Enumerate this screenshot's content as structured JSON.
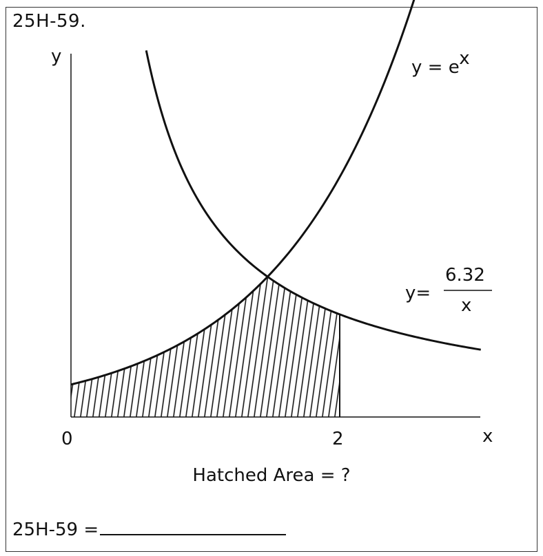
{
  "problem": {
    "id": "25H-59.",
    "question": "Hatched Area = ?",
    "answer_label": "25H-59 ="
  },
  "chart_data": {
    "type": "area",
    "xlabel": "x",
    "ylabel": "y",
    "x_ticks": [
      "0",
      "2"
    ],
    "xlim": [
      0,
      3.05
    ],
    "ylim": [
      0,
      9.2
    ],
    "curves": [
      {
        "label_prefix": "y = e",
        "label_exponent": "x",
        "numerator": "",
        "denominator": "",
        "expression": "exp",
        "domain": [
          0,
          2.62
        ]
      },
      {
        "label_prefix": "y=",
        "label_exponent": "",
        "numerator": "6.32",
        "denominator": "x",
        "expression": "6.32/x",
        "domain": [
          0.56,
          3.05
        ]
      }
    ],
    "shaded_region": {
      "from": 0,
      "to": 2,
      "upper": "min(e^x, 6.32/x)",
      "lower": 0,
      "fill": "hatched"
    }
  }
}
